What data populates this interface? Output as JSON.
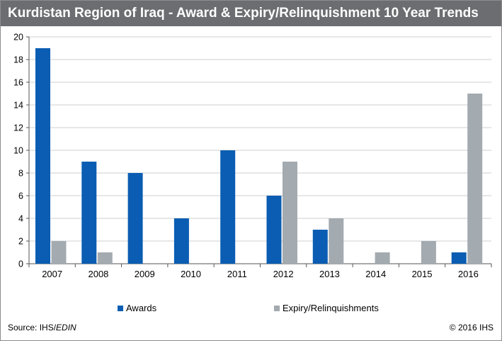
{
  "chart_data": {
    "type": "bar",
    "title": "Kurdistan Region of Iraq - Award & Expiry/Relinquishment 10 Year Trends",
    "categories": [
      "2007",
      "2008",
      "2009",
      "2010",
      "2011",
      "2012",
      "2013",
      "2014",
      "2015",
      "2016"
    ],
    "series": [
      {
        "name": "Awards",
        "color": "#0a5db2",
        "values": [
          19,
          9,
          8,
          4,
          10,
          6,
          3,
          0,
          0,
          1
        ]
      },
      {
        "name": "Expiry/Relinquishments",
        "color": "#a3aab0",
        "values": [
          2,
          1,
          0,
          0,
          0,
          9,
          4,
          1,
          2,
          15
        ]
      }
    ],
    "ylim": [
      0,
      20
    ],
    "yticks": [
      0,
      2,
      4,
      6,
      8,
      10,
      12,
      14,
      16,
      18,
      20
    ],
    "grid": true,
    "legend": "bottom"
  },
  "footer": {
    "source_prefix": "Source: IHS/",
    "source_italic": "EDIN",
    "copyright": "© 2016 IHS"
  }
}
